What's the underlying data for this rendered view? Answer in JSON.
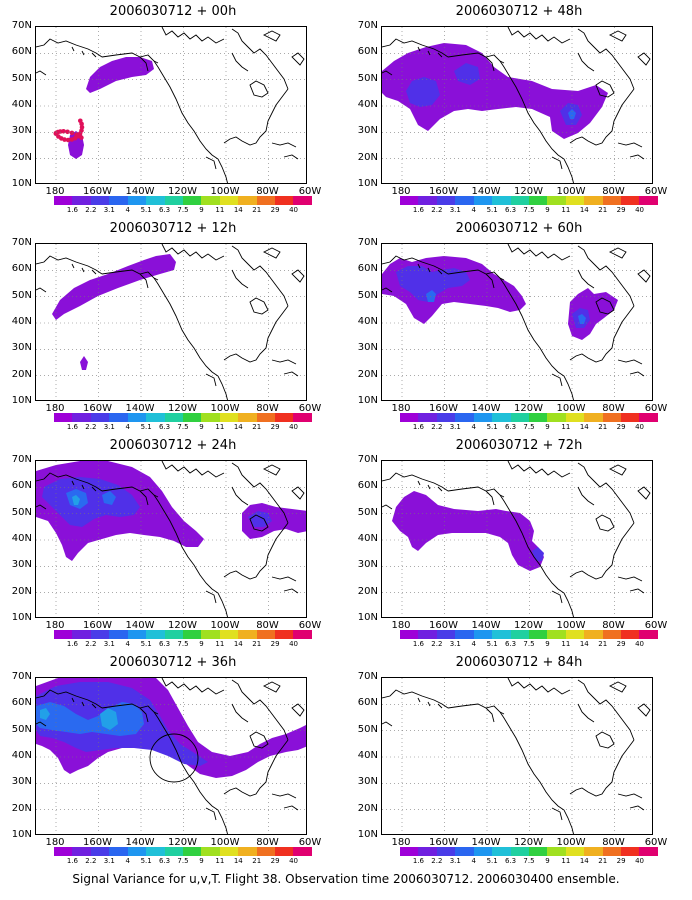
{
  "caption": "Signal Variance for u,v,T. Flight 38. Observation time 2006030712. 2006030400 ensemble.",
  "panels": [
    {
      "title": "2006030712 + 00h",
      "hours": 0
    },
    {
      "title": "2006030712 + 48h",
      "hours": 48
    },
    {
      "title": "2006030712 + 12h",
      "hours": 12
    },
    {
      "title": "2006030712 + 60h",
      "hours": 60
    },
    {
      "title": "2006030712 + 24h",
      "hours": 24
    },
    {
      "title": "2006030712 + 72h",
      "hours": 72
    },
    {
      "title": "2006030712 + 36h",
      "hours": 36
    },
    {
      "title": "2006030712 + 84h",
      "hours": 84
    }
  ],
  "latitude_labels": [
    "70N",
    "60N",
    "50N",
    "40N",
    "30N",
    "20N",
    "10N"
  ],
  "longitude_labels": [
    "180",
    "160W",
    "140W",
    "120W",
    "100W",
    "80W",
    "60W"
  ],
  "colorbar": {
    "labels": [
      "1.6",
      "2.2",
      "3.1",
      "4",
      "5.1",
      "6.3",
      "7.5",
      "9",
      "11",
      "14",
      "21",
      "29",
      "40"
    ],
    "colors": [
      "#9e00d8",
      "#7020e0",
      "#4a3ce8",
      "#2a66f0",
      "#1e96f0",
      "#20c0d8",
      "#20d0a0",
      "#30d040",
      "#a0e020",
      "#e0e020",
      "#f0b020",
      "#f07020",
      "#f03020",
      "#e00070"
    ]
  },
  "contour_colors": {
    "level1": "#8a10d8",
    "level2": "#5030e8",
    "level3": "#2a6af0",
    "level4": "#22a0e8",
    "marker": "#e0105a"
  }
}
